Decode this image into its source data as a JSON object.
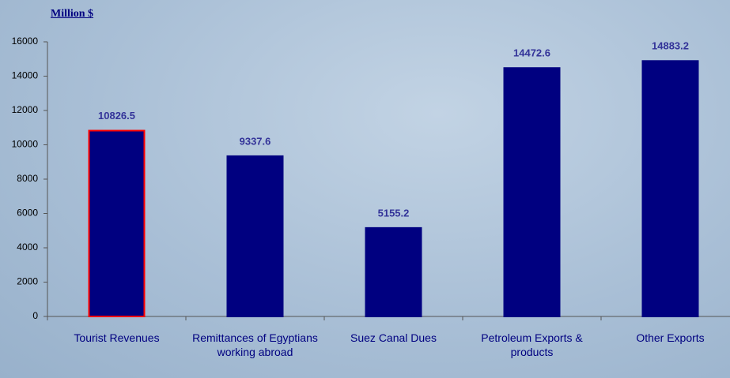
{
  "chart_data": {
    "type": "bar",
    "y_axis_label": "Million $",
    "categories": [
      "Tourist Revenues",
      "Remittances of Egyptians working abroad",
      "Suez Canal Dues",
      "Petroleum Exports & products",
      "Other Exports"
    ],
    "values": [
      10826.5,
      9337.6,
      5155.2,
      14472.6,
      14883.2
    ],
    "color": "#000080",
    "edge_colors": [
      "#ff0000",
      "#000080",
      "#000080",
      "#000080",
      "#000080"
    ],
    "ylim": [
      0,
      16000
    ],
    "yticks": [
      0,
      2000,
      4000,
      6000,
      8000,
      10000,
      12000,
      14000,
      16000
    ],
    "grid": false
  }
}
